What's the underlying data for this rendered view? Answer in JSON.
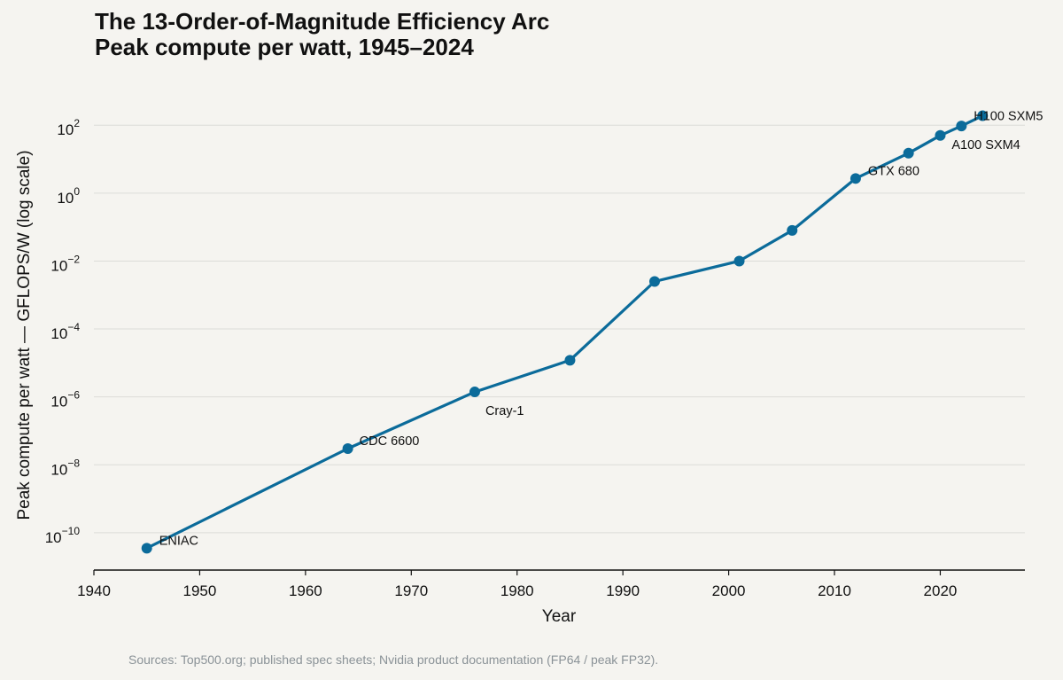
{
  "chart_data": {
    "type": "line",
    "title": "The 13-Order-of-Magnitude Efficiency Arc",
    "subtitle": "Peak compute per watt, 1945–2024",
    "xlabel": "Year",
    "ylabel": "Peak compute per watt — GFLOPS/W (log scale)",
    "y_scale": "log",
    "xlim": [
      1940,
      2028
    ],
    "ylim_log10": [
      -11.1,
      2.45
    ],
    "x_ticks": [
      1940,
      1950,
      1960,
      1970,
      1980,
      1990,
      2000,
      2010,
      2020
    ],
    "y_tick_exponents": [
      -10,
      -8,
      -6,
      -4,
      -2,
      0,
      2
    ],
    "grid": "horizontal",
    "line_color": "#0b6b9a",
    "series": [
      {
        "points": [
          {
            "x": 1945,
            "y": 3.5e-11,
            "label": "ENIAC"
          },
          {
            "x": 1964,
            "y": 3e-08,
            "label": "CDC 6600"
          },
          {
            "x": 1976,
            "y": 1.4e-06,
            "label": "Cray-1"
          },
          {
            "x": 1985,
            "y": 1.2e-05,
            "label": ""
          },
          {
            "x": 1993,
            "y": 0.0025,
            "label": ""
          },
          {
            "x": 2001,
            "y": 0.01,
            "label": ""
          },
          {
            "x": 2006,
            "y": 0.08,
            "label": ""
          },
          {
            "x": 2012,
            "y": 2.7,
            "label": "GTX 680"
          },
          {
            "x": 2017,
            "y": 15,
            "label": ""
          },
          {
            "x": 2020,
            "y": 50,
            "label": ""
          },
          {
            "x": 2022,
            "y": 95,
            "label": "A100 SXM4"
          },
          {
            "x": 2024,
            "y": 190,
            "label": "H100 SXM5"
          }
        ]
      }
    ],
    "source": "Sources: Top500.org; published spec sheets; Nvidia product documentation (FP64 / peak FP32)."
  }
}
